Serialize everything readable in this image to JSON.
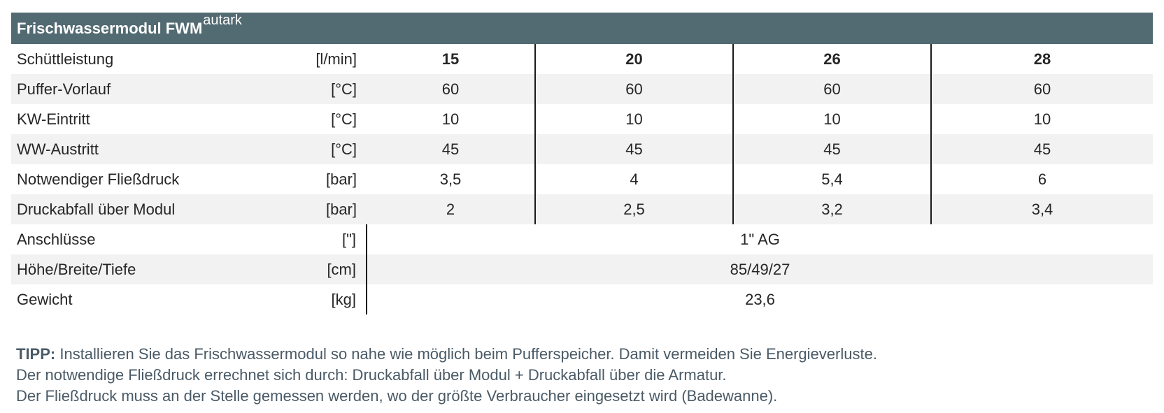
{
  "header": {
    "title": "Frischwassermodul FWM",
    "title_superscript": "autark",
    "background_color": "#526a72"
  },
  "table": {
    "rows": [
      {
        "label": "Schüttleistung",
        "unit": "[l/min]",
        "values": [
          "15",
          "20",
          "26",
          "28"
        ],
        "bold": true
      },
      {
        "label": "Puffer-Vorlauf",
        "unit": "[°C]",
        "values": [
          "60",
          "60",
          "60",
          "60"
        ]
      },
      {
        "label": "KW-Eintritt",
        "unit": "[°C]",
        "values": [
          "10",
          "10",
          "10",
          "10"
        ]
      },
      {
        "label": "WW-Austritt",
        "unit": "[°C]",
        "values": [
          "45",
          "45",
          "45",
          "45"
        ]
      },
      {
        "label": "Notwendiger Fließdruck",
        "unit": "[bar]",
        "values": [
          "3,5",
          "4",
          "5,4",
          "6"
        ]
      },
      {
        "label": "Druckabfall über Modul",
        "unit": "[bar]",
        "values": [
          "2",
          "2,5",
          "3,2",
          "3,4"
        ]
      }
    ],
    "merged_rows": [
      {
        "label": "Anschlüsse",
        "unit": "[\"]",
        "value": "1\" AG"
      },
      {
        "label": "Höhe/Breite/Tiefe",
        "unit": "[cm]",
        "value": "85/49/27"
      },
      {
        "label": "Gewicht",
        "unit": "[kg]",
        "value": "23,6"
      }
    ]
  },
  "notes": {
    "tip_label": "TIPP:",
    "tip_text": " Installieren Sie das Frischwassermodul so nahe wie möglich beim Pufferspeicher. Damit vermeiden Sie Energieverluste.",
    "line2": "Der notwendige Fließdruck errechnet sich durch: Druckabfall über Modul + Druckabfall über die Armatur.",
    "line3": "Der Fließdruck muss an der Stelle gemessen werden, wo der größte Verbraucher eingesetzt wird (Badewanne)."
  }
}
